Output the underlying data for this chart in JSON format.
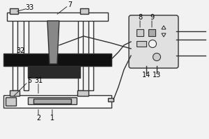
{
  "bg_color": "#f2f2f2",
  "line_color": "#303030",
  "dark_color": "#1a1a1a",
  "black_color": "#111111",
  "gray_color": "#888888",
  "mid_gray": "#aaaaaa",
  "light_gray": "#cccccc",
  "white_color": "#f8f8f8",
  "ctrl_bg": "#e0e0e0"
}
